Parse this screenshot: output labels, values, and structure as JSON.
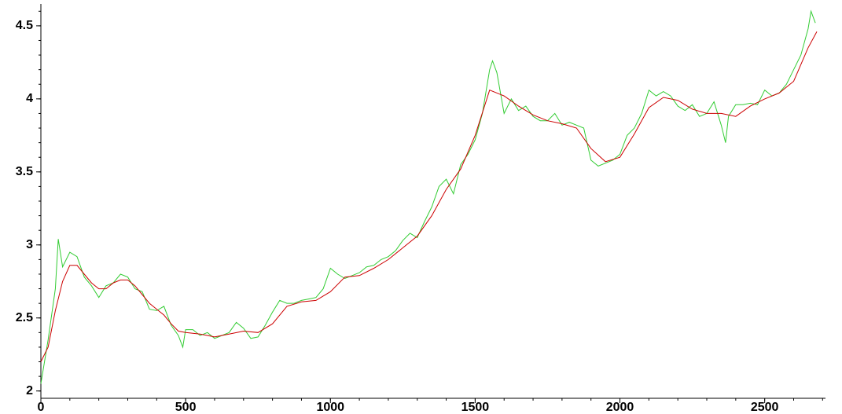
{
  "chart_data": {
    "type": "line",
    "xlim": [
      0,
      2710
    ],
    "ylim": [
      1.95,
      4.65
    ],
    "xticks": [
      0,
      500,
      1000,
      1500,
      2000,
      2500
    ],
    "yticks": [
      2,
      2.5,
      3,
      3.5,
      4,
      4.5
    ],
    "series": [
      {
        "color": "#33cc33",
        "x": [
          0,
          25,
          50,
          60,
          75,
          100,
          125,
          150,
          175,
          200,
          225,
          250,
          275,
          300,
          325,
          350,
          375,
          400,
          425,
          450,
          475,
          490,
          500,
          525,
          550,
          575,
          600,
          625,
          650,
          675,
          700,
          725,
          750,
          775,
          800,
          825,
          850,
          875,
          900,
          925,
          950,
          975,
          1000,
          1025,
          1050,
          1075,
          1100,
          1125,
          1150,
          1175,
          1200,
          1225,
          1250,
          1275,
          1300,
          1325,
          1350,
          1375,
          1400,
          1425,
          1450,
          1475,
          1500,
          1525,
          1550,
          1560,
          1575,
          1600,
          1625,
          1650,
          1675,
          1700,
          1725,
          1750,
          1775,
          1800,
          1825,
          1850,
          1875,
          1900,
          1925,
          1950,
          1975,
          2000,
          2025,
          2050,
          2075,
          2100,
          2125,
          2150,
          2175,
          2200,
          2225,
          2250,
          2275,
          2300,
          2325,
          2350,
          2365,
          2375,
          2400,
          2425,
          2450,
          2475,
          2500,
          2525,
          2550,
          2575,
          2600,
          2625,
          2650,
          2660,
          2675
        ],
        "values": [
          2.05,
          2.35,
          2.7,
          3.04,
          2.85,
          2.95,
          2.92,
          2.78,
          2.72,
          2.64,
          2.72,
          2.74,
          2.8,
          2.78,
          2.7,
          2.68,
          2.56,
          2.55,
          2.58,
          2.45,
          2.38,
          2.3,
          2.42,
          2.42,
          2.38,
          2.4,
          2.36,
          2.38,
          2.4,
          2.47,
          2.43,
          2.36,
          2.37,
          2.45,
          2.54,
          2.62,
          2.6,
          2.6,
          2.62,
          2.63,
          2.64,
          2.7,
          2.84,
          2.8,
          2.77,
          2.79,
          2.81,
          2.85,
          2.86,
          2.9,
          2.92,
          2.96,
          3.03,
          3.08,
          3.05,
          3.16,
          3.26,
          3.4,
          3.45,
          3.35,
          3.55,
          3.62,
          3.72,
          3.9,
          4.2,
          4.26,
          4.18,
          3.9,
          4.0,
          3.92,
          3.95,
          3.88,
          3.85,
          3.85,
          3.9,
          3.82,
          3.84,
          3.82,
          3.8,
          3.58,
          3.54,
          3.56,
          3.58,
          3.62,
          3.75,
          3.8,
          3.9,
          4.06,
          4.02,
          4.05,
          4.02,
          3.95,
          3.92,
          3.96,
          3.88,
          3.9,
          3.98,
          3.82,
          3.7,
          3.88,
          3.96,
          3.96,
          3.97,
          3.96,
          4.06,
          4.02,
          4.04,
          4.1,
          4.2,
          4.3,
          4.48,
          4.6,
          4.52
        ]
      },
      {
        "color": "#cc0000",
        "x": [
          0,
          25,
          50,
          75,
          100,
          125,
          150,
          175,
          200,
          225,
          250,
          275,
          300,
          325,
          350,
          375,
          400,
          425,
          450,
          475,
          500,
          550,
          600,
          650,
          700,
          750,
          800,
          850,
          900,
          950,
          1000,
          1050,
          1100,
          1150,
          1200,
          1250,
          1300,
          1350,
          1400,
          1450,
          1500,
          1550,
          1600,
          1650,
          1700,
          1750,
          1800,
          1850,
          1900,
          1950,
          2000,
          2050,
          2100,
          2150,
          2200,
          2250,
          2300,
          2350,
          2400,
          2450,
          2500,
          2550,
          2600,
          2650,
          2680
        ],
        "values": [
          2.2,
          2.3,
          2.55,
          2.75,
          2.86,
          2.86,
          2.8,
          2.74,
          2.7,
          2.7,
          2.74,
          2.76,
          2.76,
          2.72,
          2.66,
          2.6,
          2.56,
          2.52,
          2.46,
          2.41,
          2.4,
          2.39,
          2.37,
          2.39,
          2.41,
          2.4,
          2.46,
          2.58,
          2.61,
          2.62,
          2.68,
          2.78,
          2.79,
          2.84,
          2.9,
          2.98,
          3.06,
          3.2,
          3.38,
          3.52,
          3.75,
          4.06,
          4.02,
          3.95,
          3.89,
          3.85,
          3.83,
          3.8,
          3.66,
          3.57,
          3.6,
          3.76,
          3.94,
          4.01,
          3.99,
          3.93,
          3.9,
          3.9,
          3.88,
          3.95,
          4.0,
          4.04,
          4.12,
          4.35,
          4.46
        ]
      }
    ]
  }
}
